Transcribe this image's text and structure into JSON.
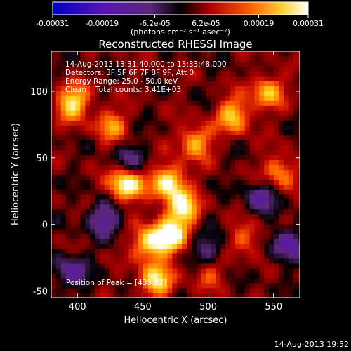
{
  "chart_data": {
    "type": "heatmap",
    "title": "Reconstructed RHESSI Image",
    "xlabel": "Heliocentric X (arcsec)",
    "ylabel": "Heliocentric Y (arcsec)",
    "xlim": [
      380,
      570
    ],
    "ylim": [
      -55,
      130
    ],
    "x_ticks": [
      400,
      450,
      500,
      550
    ],
    "y_ticks": [
      -50,
      0,
      50,
      100
    ],
    "colorbar": {
      "min": -0.00031,
      "max": 0.00031,
      "tick_labels": [
        "-0.00031",
        "-0.00019",
        "-6.2e-05",
        "6.2e-05",
        "0.00019",
        "0.00031"
      ],
      "units_label": "(photons cm⁻² s⁻¹ asec⁻²)"
    },
    "annotations": [
      "14-Aug-2013 13:31:40.000 to 13:33:48.000",
      "Detectors: 3F 5F 6F 7F 8F 9F, Att 0",
      "Energy Range: 25.0 - 50.0 keV",
      "Clean    Total counts: 3.41E+03"
    ],
    "peak_label": "Position of Peak = [435,22]",
    "peak": {
      "x": 435,
      "y": 22
    },
    "hot_spots": [
      {
        "x": 437,
        "y": 30,
        "v": 0.00031
      },
      {
        "x": 470,
        "y": 32,
        "v": 0.00027
      },
      {
        "x": 480,
        "y": 12,
        "v": 0.00025
      },
      {
        "x": 396,
        "y": 92,
        "v": 0.00024
      },
      {
        "x": 470,
        "y": -8,
        "v": 0.00027
      },
      {
        "x": 455,
        "y": -15,
        "v": 0.00022
      },
      {
        "x": 460,
        "y": -42,
        "v": 0.00023
      },
      {
        "x": 490,
        "y": 62,
        "v": 0.0002
      },
      {
        "x": 520,
        "y": 82,
        "v": 0.00021
      },
      {
        "x": 545,
        "y": 100,
        "v": 0.00019
      },
      {
        "x": 555,
        "y": 40,
        "v": 0.00017
      },
      {
        "x": 425,
        "y": 75,
        "v": 0.00016
      },
      {
        "x": 530,
        "y": -10,
        "v": 0.00013
      },
      {
        "x": 500,
        "y": -35,
        "v": 0.00012
      }
    ],
    "cold_spots": [
      {
        "x": 420,
        "y": 5,
        "v": -0.00018
      },
      {
        "x": 540,
        "y": 20,
        "v": -0.00015
      },
      {
        "x": 560,
        "y": -15,
        "v": -0.00019
      },
      {
        "x": 500,
        "y": -20,
        "v": -0.00014
      },
      {
        "x": 440,
        "y": 48,
        "v": -0.00012
      },
      {
        "x": 395,
        "y": -35,
        "v": -0.00016
      }
    ]
  },
  "footer_timestamp": "14-Aug-2013 19:52"
}
